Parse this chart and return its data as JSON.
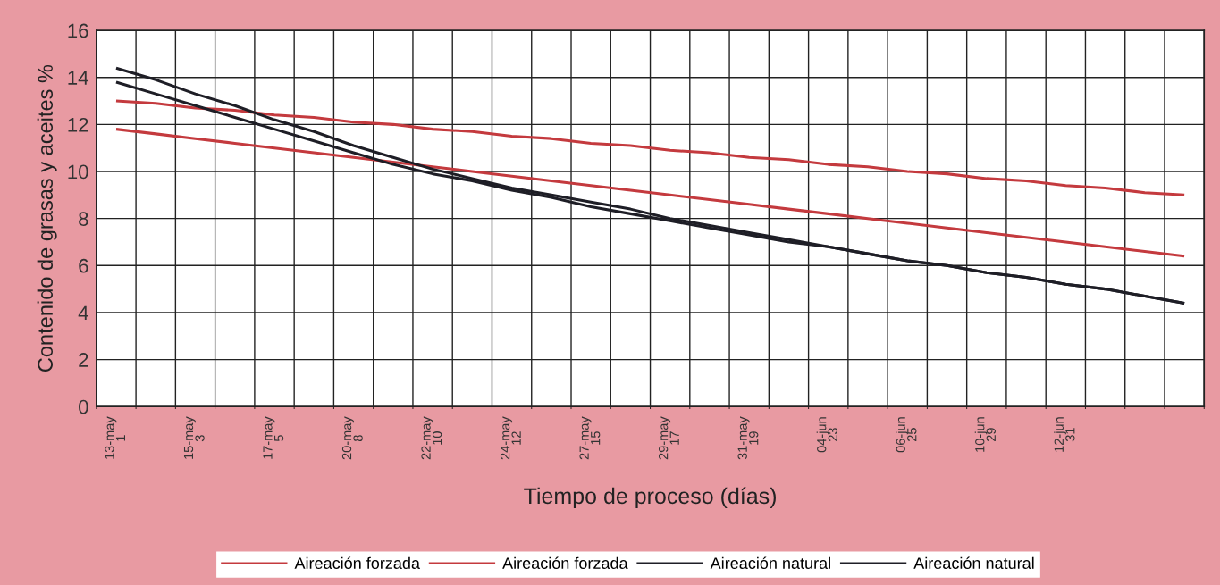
{
  "chart_data": {
    "type": "line",
    "xlabel": "Tiempo de proceso (días)",
    "ylabel": "Contenido de grasas y aceites %",
    "categories": [
      "13-may\n1",
      null,
      "15-may\n3",
      null,
      "17-may\n5",
      null,
      "20-may\n8",
      null,
      "22-may\n10",
      null,
      "24-may\n12",
      null,
      "27-may\n15",
      null,
      "29-may\n17",
      null,
      "31-may\n19",
      null,
      "04-jun\n23",
      null,
      "06-jun\n25",
      null,
      "10-jun\n29",
      null,
      "12-jun\n31",
      null,
      null,
      null
    ],
    "series": [
      {
        "name": "Aireación forzada",
        "color": "#c43a3e",
        "values": [
          13.0,
          12.9,
          12.7,
          12.6,
          12.4,
          12.3,
          12.1,
          12.0,
          11.8,
          11.7,
          11.5,
          11.4,
          11.2,
          11.1,
          10.9,
          10.8,
          10.6,
          10.5,
          10.3,
          10.2,
          10.0,
          9.9,
          9.7,
          9.6,
          9.4,
          9.3,
          9.1,
          9.0
        ]
      },
      {
        "name": "Aireación forzada",
        "color": "#c43a3e",
        "values": [
          11.8,
          11.6,
          11.4,
          11.2,
          11.0,
          10.8,
          10.6,
          10.4,
          10.2,
          10.0,
          9.8,
          9.6,
          9.4,
          9.2,
          9.0,
          8.8,
          8.6,
          8.4,
          8.2,
          8.0,
          7.8,
          7.6,
          7.4,
          7.2,
          7.0,
          6.8,
          6.6,
          6.4
        ]
      },
      {
        "name": "Aireación natural",
        "color": "#1e1e26",
        "values": [
          14.4,
          13.9,
          13.3,
          12.8,
          12.2,
          11.7,
          11.1,
          10.6,
          10.1,
          9.7,
          9.3,
          9.0,
          8.7,
          8.4,
          8.0,
          7.7,
          7.4,
          7.1,
          6.8,
          6.5,
          6.2,
          6.0,
          5.7,
          5.5,
          5.2,
          5.0,
          4.7,
          4.4
        ]
      },
      {
        "name": "Aireación natural",
        "color": "#1e1e26",
        "values": [
          13.8,
          13.3,
          12.8,
          12.3,
          11.8,
          11.3,
          10.8,
          10.3,
          9.9,
          9.6,
          9.2,
          8.9,
          8.5,
          8.2,
          7.9,
          7.6,
          7.3,
          7.0,
          6.8,
          6.5,
          6.2,
          6.0,
          5.7,
          5.5,
          5.2,
          5.0,
          4.7,
          4.4
        ]
      }
    ],
    "ylim": [
      0,
      16
    ],
    "yticks": [
      0,
      2,
      4,
      6,
      8,
      10,
      12,
      14,
      16
    ],
    "grid": true,
    "legend": "bottom"
  }
}
